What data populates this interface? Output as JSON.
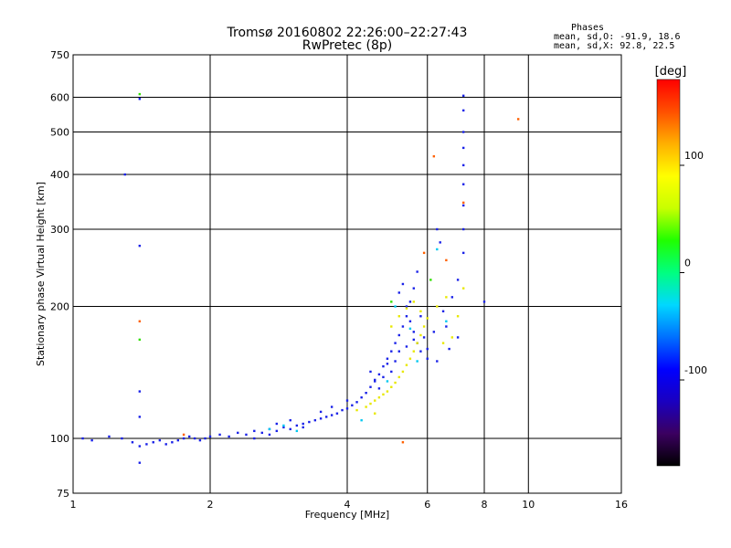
{
  "chart_data": {
    "type": "scatter",
    "title": "Tromsø 20160802 22:26:00–22:27:43",
    "subtitle": "RwPretec (8p)",
    "xlabel": "Frequency [MHz]",
    "ylabel": "Stationary phase Virtual Height [km]",
    "x_scale": "log",
    "y_scale": "log",
    "xlim": [
      1,
      16
    ],
    "ylim": [
      75,
      750
    ],
    "x_ticks": [
      1,
      2,
      4,
      6,
      8,
      10,
      16
    ],
    "y_ticks": [
      75,
      100,
      200,
      300,
      400,
      500,
      600,
      750
    ],
    "grid": true,
    "phase_legend": {
      "heading": "Phases",
      "line_o": "mean, sd,O: -91.9, 18.6",
      "line_x": "mean, sd,X:  92.8, 22.5"
    },
    "colorbar": {
      "label": "[deg]",
      "range": [
        -180,
        180
      ],
      "ticks": [
        100,
        0,
        -100
      ],
      "colors": [
        "#000000",
        "#3b0060",
        "#1a00c0",
        "#0000ff",
        "#0070ff",
        "#00d8ff",
        "#00ff80",
        "#20ff00",
        "#c8ff00",
        "#ffff00",
        "#ffb000",
        "#ff5000",
        "#ff0000"
      ]
    },
    "series": [
      {
        "marker_color": "#1a22e8",
        "phase": -100,
        "points": [
          [
            1.05,
            100
          ],
          [
            1.1,
            99
          ],
          [
            1.2,
            101
          ],
          [
            1.28,
            100
          ],
          [
            1.35,
            98
          ],
          [
            1.4,
            96
          ],
          [
            1.45,
            97
          ],
          [
            1.5,
            98
          ],
          [
            1.55,
            99
          ],
          [
            1.6,
            97
          ],
          [
            1.65,
            98
          ],
          [
            1.7,
            99
          ],
          [
            1.75,
            100
          ],
          [
            1.8,
            101
          ],
          [
            1.85,
            100
          ],
          [
            1.9,
            99
          ],
          [
            1.95,
            100
          ],
          [
            2.0,
            101
          ],
          [
            2.1,
            102
          ],
          [
            2.2,
            101
          ],
          [
            2.3,
            103
          ],
          [
            2.4,
            102
          ],
          [
            2.5,
            104
          ],
          [
            2.6,
            103
          ],
          [
            2.7,
            105
          ],
          [
            2.8,
            104
          ],
          [
            2.9,
            106
          ],
          [
            3.0,
            105
          ],
          [
            3.1,
            107
          ],
          [
            3.2,
            108
          ],
          [
            3.3,
            109
          ],
          [
            3.4,
            110
          ],
          [
            3.5,
            111
          ],
          [
            3.6,
            112
          ],
          [
            3.7,
            113
          ],
          [
            3.8,
            114
          ],
          [
            3.9,
            116
          ],
          [
            4.0,
            117
          ],
          [
            4.1,
            119
          ],
          [
            4.2,
            121
          ],
          [
            4.3,
            124
          ],
          [
            4.4,
            127
          ],
          [
            4.5,
            131
          ],
          [
            4.6,
            136
          ],
          [
            4.7,
            140
          ],
          [
            4.8,
            146
          ],
          [
            4.9,
            152
          ],
          [
            5.0,
            158
          ],
          [
            5.1,
            165
          ],
          [
            5.2,
            172
          ],
          [
            5.3,
            180
          ],
          [
            5.4,
            190
          ],
          [
            5.5,
            205
          ],
          [
            5.6,
            220
          ],
          [
            5.7,
            240
          ],
          [
            5.2,
            215
          ],
          [
            5.3,
            225
          ],
          [
            5.4,
            200
          ],
          [
            5.5,
            185
          ],
          [
            5.6,
            175
          ],
          [
            5.7,
            165
          ],
          [
            5.8,
            190
          ],
          [
            5.9,
            170
          ],
          [
            6.0,
            160
          ],
          [
            6.2,
            175
          ],
          [
            6.5,
            195
          ],
          [
            6.6,
            180
          ],
          [
            6.8,
            210
          ],
          [
            7.0,
            230
          ],
          [
            7.2,
            265
          ],
          [
            7.2,
            300
          ],
          [
            7.2,
            340
          ],
          [
            7.2,
            380
          ],
          [
            7.2,
            420
          ],
          [
            7.2,
            460
          ],
          [
            7.2,
            500
          ],
          [
            7.2,
            560
          ],
          [
            7.2,
            605
          ],
          [
            6.4,
            280
          ],
          [
            6.3,
            300
          ],
          [
            4.6,
            135
          ],
          [
            4.5,
            142
          ],
          [
            4.7,
            130
          ],
          [
            4.8,
            138
          ],
          [
            4.9,
            148
          ],
          [
            5.0,
            142
          ],
          [
            5.1,
            150
          ],
          [
            5.2,
            158
          ],
          [
            5.4,
            162
          ],
          [
            5.6,
            168
          ],
          [
            5.8,
            158
          ],
          [
            6.0,
            152
          ],
          [
            6.3,
            150
          ],
          [
            6.7,
            160
          ],
          [
            7.0,
            170
          ],
          [
            1.3,
            400
          ],
          [
            1.4,
            275
          ],
          [
            1.4,
            128
          ],
          [
            1.4,
            112
          ],
          [
            1.4,
            88
          ],
          [
            1.4,
            595
          ],
          [
            8.0,
            205
          ],
          [
            3.0,
            110
          ],
          [
            3.2,
            106
          ],
          [
            2.8,
            108
          ],
          [
            3.5,
            115
          ],
          [
            3.7,
            118
          ],
          [
            4.0,
            122
          ],
          [
            2.5,
            100
          ],
          [
            2.7,
            102
          ]
        ]
      },
      {
        "marker_color": "#e8e800",
        "phase": 100,
        "points": [
          [
            4.4,
            118
          ],
          [
            4.5,
            120
          ],
          [
            4.6,
            122
          ],
          [
            4.7,
            124
          ],
          [
            4.8,
            126
          ],
          [
            4.9,
            128
          ],
          [
            5.0,
            131
          ],
          [
            5.1,
            134
          ],
          [
            5.2,
            138
          ],
          [
            5.3,
            142
          ],
          [
            5.4,
            147
          ],
          [
            5.5,
            152
          ],
          [
            5.6,
            158
          ],
          [
            5.7,
            165
          ],
          [
            5.8,
            172
          ],
          [
            5.9,
            180
          ],
          [
            6.0,
            188
          ],
          [
            5.0,
            180
          ],
          [
            5.2,
            190
          ],
          [
            5.4,
            198
          ],
          [
            5.6,
            205
          ],
          [
            5.8,
            195
          ],
          [
            6.3,
            200
          ],
          [
            6.6,
            210
          ],
          [
            7.0,
            190
          ],
          [
            7.2,
            220
          ],
          [
            6.8,
            170
          ],
          [
            6.5,
            165
          ],
          [
            4.6,
            114
          ],
          [
            4.2,
            116
          ]
        ]
      },
      {
        "marker_color": "#00c8f0",
        "phase": 20,
        "points": [
          [
            2.7,
            105
          ],
          [
            2.9,
            107
          ],
          [
            3.1,
            104
          ],
          [
            4.3,
            110
          ],
          [
            4.9,
            135
          ],
          [
            5.1,
            200
          ],
          [
            5.5,
            178
          ],
          [
            6.3,
            270
          ],
          [
            6.6,
            185
          ],
          [
            5.7,
            150
          ]
        ]
      },
      {
        "marker_color": "#ff6000",
        "phase": 150,
        "points": [
          [
            1.4,
            185
          ],
          [
            1.75,
            102
          ],
          [
            5.3,
            98
          ],
          [
            6.2,
            440
          ],
          [
            7.2,
            345
          ],
          [
            9.5,
            535
          ],
          [
            6.6,
            255
          ],
          [
            5.9,
            265
          ]
        ]
      },
      {
        "marker_color": "#30e000",
        "phase": 60,
        "points": [
          [
            1.4,
            610
          ],
          [
            1.4,
            168
          ],
          [
            5.0,
            205
          ],
          [
            6.1,
            230
          ]
        ]
      }
    ]
  }
}
